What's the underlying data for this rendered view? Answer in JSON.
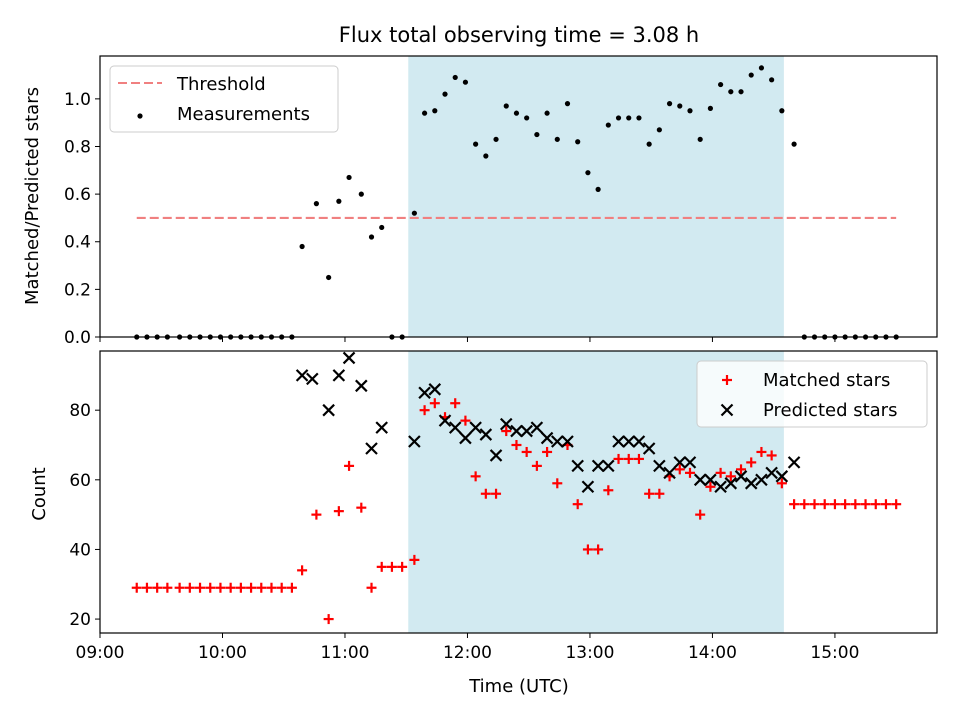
{
  "figure": {
    "title": "Flux total observing time = 3.08 h",
    "xlabel": "Time (UTC)"
  },
  "colors": {
    "shade": "#add8e6",
    "threshold": "#f08080",
    "measurements": "#000000",
    "matched": "#ff0000",
    "predicted": "#000000"
  },
  "chart_data": [
    {
      "type": "scatter",
      "ylabel": "Matched/Predicted stars",
      "xlim": [
        "09:00",
        "15:50"
      ],
      "ylim": [
        0,
        1.18
      ],
      "x_ticks": [
        "09:00",
        "10:00",
        "11:00",
        "12:00",
        "13:00",
        "14:00",
        "15:00"
      ],
      "y_ticks": [
        0.0,
        0.2,
        0.4,
        0.6,
        0.8,
        1.0
      ],
      "y_tick_labels": [
        "0.0",
        "0.2",
        "0.4",
        "0.6",
        "0.8",
        "1.0"
      ],
      "shaded_interval": [
        "11:31",
        "14:35"
      ],
      "threshold": {
        "name": "Threshold",
        "y": 0.5,
        "x_range": [
          "09:18",
          "15:30"
        ],
        "style": "dashed"
      },
      "legend": {
        "position": "upper-left",
        "entries": [
          "Threshold",
          "Measurements"
        ]
      },
      "series": [
        {
          "name": "Measurements",
          "marker": "dot",
          "x": [
            "09:18",
            "09:23",
            "09:28",
            "09:33",
            "09:39",
            "09:44",
            "09:49",
            "09:54",
            "09:59",
            "10:04",
            "10:09",
            "10:14",
            "10:19",
            "10:24",
            "10:29",
            "10:34",
            "10:39",
            "10:46",
            "10:52",
            "10:57",
            "11:02",
            "11:08",
            "11:13",
            "11:18",
            "11:23",
            "11:28",
            "11:34",
            "11:39",
            "11:44",
            "11:49",
            "11:54",
            "11:59",
            "12:04",
            "12:09",
            "12:14",
            "12:19",
            "12:24",
            "12:29",
            "12:34",
            "12:39",
            "12:44",
            "12:49",
            "12:54",
            "12:59",
            "13:04",
            "13:09",
            "13:14",
            "13:19",
            "13:24",
            "13:29",
            "13:34",
            "13:39",
            "13:44",
            "13:49",
            "13:54",
            "13:59",
            "14:04",
            "14:09",
            "14:14",
            "14:19",
            "14:24",
            "14:29",
            "14:34",
            "14:40",
            "14:45",
            "14:50",
            "14:55",
            "15:00",
            "15:05",
            "15:10",
            "15:15",
            "15:20",
            "15:25",
            "15:30"
          ],
          "y": [
            0,
            0,
            0,
            0,
            0,
            0,
            0,
            0,
            0,
            0,
            0,
            0,
            0,
            0,
            0,
            0,
            0.38,
            0.56,
            0.25,
            0.57,
            0.67,
            0.6,
            0.42,
            0.46,
            0,
            0,
            0.52,
            0.94,
            0.95,
            1.02,
            1.09,
            1.07,
            0.81,
            0.76,
            0.83,
            0.97,
            0.94,
            0.92,
            0.85,
            0.94,
            0.83,
            0.98,
            0.82,
            0.69,
            0.62,
            0.89,
            0.92,
            0.92,
            0.92,
            0.81,
            0.87,
            0.98,
            0.97,
            0.95,
            0.83,
            0.96,
            1.06,
            1.03,
            1.03,
            1.1,
            1.13,
            1.08,
            0.95,
            0.81,
            0,
            0,
            0,
            0,
            0,
            0,
            0,
            0,
            0,
            0
          ]
        }
      ]
    },
    {
      "type": "scatter",
      "ylabel": "Count",
      "xlabel": "Time (UTC)",
      "xlim": [
        "09:00",
        "15:50"
      ],
      "ylim": [
        16,
        97
      ],
      "x_ticks": [
        "09:00",
        "10:00",
        "11:00",
        "12:00",
        "13:00",
        "14:00",
        "15:00"
      ],
      "y_ticks": [
        20,
        40,
        60,
        80
      ],
      "shaded_interval": [
        "11:31",
        "14:35"
      ],
      "legend": {
        "position": "upper-right",
        "entries": [
          "Matched stars",
          "Predicted stars"
        ]
      },
      "series": [
        {
          "name": "Matched stars",
          "marker": "plus",
          "x": [
            "09:18",
            "09:23",
            "09:28",
            "09:33",
            "09:39",
            "09:44",
            "09:49",
            "09:54",
            "09:59",
            "10:04",
            "10:09",
            "10:14",
            "10:19",
            "10:24",
            "10:29",
            "10:34",
            "10:39",
            "10:46",
            "10:52",
            "10:57",
            "11:02",
            "11:08",
            "11:13",
            "11:18",
            "11:23",
            "11:28",
            "11:34",
            "11:39",
            "11:44",
            "11:49",
            "11:54",
            "11:59",
            "12:04",
            "12:09",
            "12:14",
            "12:19",
            "12:24",
            "12:29",
            "12:34",
            "12:39",
            "12:44",
            "12:49",
            "12:54",
            "12:59",
            "13:04",
            "13:09",
            "13:14",
            "13:19",
            "13:24",
            "13:29",
            "13:34",
            "13:39",
            "13:44",
            "13:49",
            "13:54",
            "13:59",
            "14:04",
            "14:09",
            "14:14",
            "14:19",
            "14:24",
            "14:29",
            "14:34",
            "14:40",
            "14:45",
            "14:50",
            "14:55",
            "15:00",
            "15:05",
            "15:10",
            "15:15",
            "15:20",
            "15:25",
            "15:30"
          ],
          "y": [
            29,
            29,
            29,
            29,
            29,
            29,
            29,
            29,
            29,
            29,
            29,
            29,
            29,
            29,
            29,
            29,
            34,
            50,
            20,
            51,
            64,
            52,
            29,
            35,
            35,
            35,
            37,
            80,
            82,
            78,
            82,
            77,
            61,
            56,
            56,
            74,
            70,
            68,
            64,
            68,
            59,
            70,
            53,
            40,
            40,
            57,
            66,
            66,
            66,
            56,
            56,
            61,
            63,
            62,
            50,
            58,
            62,
            61,
            63,
            65,
            68,
            67,
            59,
            53,
            53,
            53,
            53,
            53,
            53,
            53,
            53,
            53,
            53,
            53
          ]
        },
        {
          "name": "Predicted stars",
          "marker": "x",
          "x": [
            "10:39",
            "10:44",
            "10:52",
            "10:57",
            "11:02",
            "11:08",
            "11:13",
            "11:18",
            "11:34",
            "11:39",
            "11:44",
            "11:49",
            "11:54",
            "11:59",
            "12:04",
            "12:09",
            "12:14",
            "12:19",
            "12:24",
            "12:29",
            "12:34",
            "12:39",
            "12:44",
            "12:49",
            "12:54",
            "12:59",
            "13:04",
            "13:09",
            "13:14",
            "13:19",
            "13:24",
            "13:29",
            "13:34",
            "13:39",
            "13:44",
            "13:49",
            "13:54",
            "13:59",
            "14:04",
            "14:09",
            "14:14",
            "14:19",
            "14:24",
            "14:29",
            "14:34",
            "14:40"
          ],
          "y": [
            90,
            89,
            80,
            90,
            95,
            87,
            69,
            75,
            71,
            85,
            86,
            77,
            75,
            72,
            75,
            73,
            67,
            76,
            74,
            74,
            75,
            72,
            71,
            71,
            64,
            58,
            64,
            64,
            71,
            71,
            71,
            69,
            64,
            62,
            65,
            65,
            60,
            60,
            58,
            59,
            61,
            59,
            60,
            62,
            61,
            65
          ]
        }
      ]
    }
  ]
}
